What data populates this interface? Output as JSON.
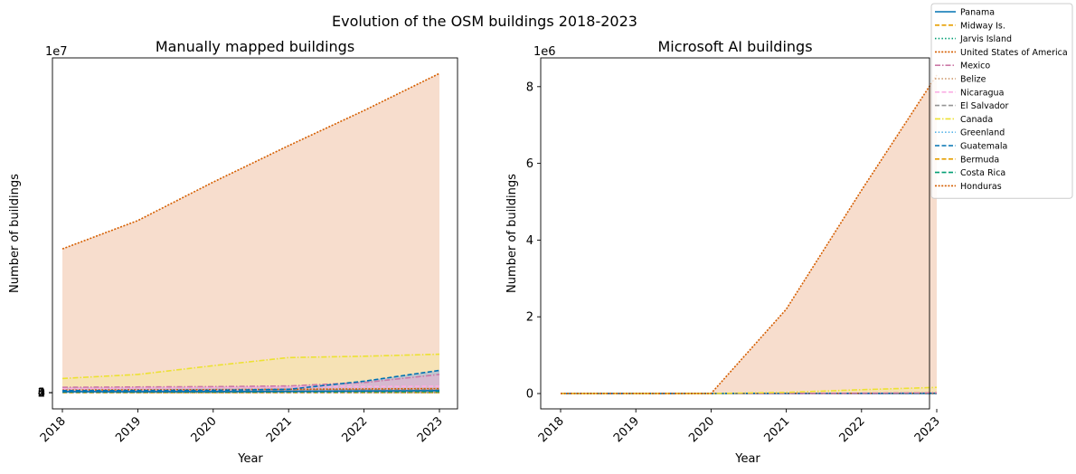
{
  "suptitle": "Evolution of the OSM buildings 2018-2023",
  "legend": {
    "placement": "top-right",
    "items": [
      {
        "label": "Panama",
        "color": "#0072b2",
        "dash": "solid"
      },
      {
        "label": "Midway Is.",
        "color": "#e69f00",
        "dash": "dashed"
      },
      {
        "label": "Jarvis Island",
        "color": "#009e73",
        "dash": "dotted"
      },
      {
        "label": "United States of America",
        "color": "#d55e00",
        "dash": "densedot"
      },
      {
        "label": "Mexico",
        "color": "#cc79a7",
        "dash": "dashdot"
      },
      {
        "label": "Belize",
        "color": "#ca9161",
        "dash": "dotted"
      },
      {
        "label": "Nicaragua",
        "color": "#fbafe4",
        "dash": "dashed"
      },
      {
        "label": "El Salvador",
        "color": "#949494",
        "dash": "dashed"
      },
      {
        "label": "Canada",
        "color": "#ece133",
        "dash": "dashdot"
      },
      {
        "label": "Greenland",
        "color": "#56b4e9",
        "dash": "dotted"
      },
      {
        "label": "Guatemala",
        "color": "#0072b2",
        "dash": "dashed"
      },
      {
        "label": "Bermuda",
        "color": "#e69f00",
        "dash": "dashed"
      },
      {
        "label": "Costa Rica",
        "color": "#009e73",
        "dash": "dashed"
      },
      {
        "label": "Honduras",
        "color": "#d55e00",
        "dash": "densedot"
      }
    ]
  },
  "chart_data": [
    {
      "type": "area",
      "title": "Manually mapped buildings",
      "xlabel": "Year",
      "ylabel": "Number of buildings",
      "exponent_label": "1e7",
      "x": [
        2018,
        2019,
        2020,
        2021,
        2022,
        2023
      ],
      "xticks": [
        "2018",
        "2019",
        "2020",
        "2021",
        "2022",
        "2023"
      ],
      "yticks": [
        0,
        1,
        2,
        3,
        4
      ],
      "ytick_labels": [
        "0",
        "1",
        "2",
        "3",
        "4"
      ],
      "ylim": [
        -2400000,
        49600000
      ],
      "grid": false,
      "fills": [
        {
          "series": "United States of America",
          "color": "#f6d9c8"
        },
        {
          "series": "Canada",
          "color": "#f5e2b3"
        },
        {
          "series": "Guatemala",
          "color": "#b8c2cf"
        },
        {
          "series": "Mexico",
          "color": "#d8b7cf"
        }
      ],
      "series": [
        {
          "name": "United States of America",
          "values": [
            21300000,
            25500000,
            31200000,
            36600000,
            41800000,
            47300000
          ]
        },
        {
          "name": "Canada",
          "values": [
            2100000,
            2700000,
            4000000,
            5200000,
            5400000,
            5700000
          ]
        },
        {
          "name": "Guatemala",
          "values": [
            300000,
            320000,
            350000,
            500000,
            1700000,
            3300000
          ]
        },
        {
          "name": "Mexico",
          "values": [
            800000,
            850000,
            900000,
            1000000,
            1500000,
            2700000
          ]
        },
        {
          "name": "Nicaragua",
          "values": [
            600000,
            700000,
            800000,
            850000,
            900000,
            950000
          ]
        },
        {
          "name": "Honduras",
          "values": [
            400000,
            420000,
            450000,
            500000,
            550000,
            600000
          ]
        },
        {
          "name": "El Salvador",
          "values": [
            300000,
            300000,
            350000,
            400000,
            450000,
            500000
          ]
        },
        {
          "name": "Panama",
          "values": [
            150000,
            160000,
            170000,
            200000,
            250000,
            300000
          ]
        },
        {
          "name": "Costa Rica",
          "values": [
            100000,
            110000,
            120000,
            130000,
            150000,
            170000
          ]
        },
        {
          "name": "Belize",
          "values": [
            30000,
            35000,
            40000,
            45000,
            50000,
            55000
          ]
        },
        {
          "name": "Greenland",
          "values": [
            5000,
            5000,
            6000,
            6000,
            7000,
            7000
          ]
        },
        {
          "name": "Bermuda",
          "values": [
            2000,
            2000,
            2000,
            2000,
            2000,
            2000
          ]
        },
        {
          "name": "Midway Is.",
          "values": [
            0,
            0,
            0,
            0,
            0,
            0
          ]
        },
        {
          "name": "Jarvis Island",
          "values": [
            0,
            0,
            0,
            0,
            0,
            0
          ]
        }
      ]
    },
    {
      "type": "area",
      "title": "Microsoft AI buildings",
      "xlabel": "Year",
      "ylabel": "Number of buildings",
      "exponent_label": "1e6",
      "x": [
        2018,
        2019,
        2020,
        2021,
        2022,
        2023
      ],
      "xticks": [
        "2018",
        "2019",
        "2020",
        "2021",
        "2022",
        "2023"
      ],
      "yticks": [
        0,
        2000000,
        4000000,
        6000000,
        8000000
      ],
      "ytick_labels": [
        "0",
        "2",
        "4",
        "6",
        "8"
      ],
      "ylim": [
        -400000,
        8750000
      ],
      "grid": false,
      "fills": [
        {
          "series": "United States of America",
          "color": "#f6d9c8"
        },
        {
          "series": "Canada",
          "color": "#f5e2b3"
        }
      ],
      "series": [
        {
          "name": "United States of America",
          "values": [
            0,
            0,
            0,
            2200000,
            5300000,
            8300000
          ]
        },
        {
          "name": "Canada",
          "values": [
            0,
            0,
            0,
            30000,
            100000,
            160000
          ]
        },
        {
          "name": "Mexico",
          "values": [
            0,
            0,
            0,
            5000,
            10000,
            20000
          ]
        },
        {
          "name": "Guatemala",
          "values": [
            0,
            0,
            0,
            3000,
            5000,
            10000
          ]
        },
        {
          "name": "Honduras",
          "values": [
            0,
            0,
            0,
            2000,
            4000,
            8000
          ]
        },
        {
          "name": "Nicaragua",
          "values": [
            0,
            0,
            0,
            1000,
            3000,
            6000
          ]
        },
        {
          "name": "El Salvador",
          "values": [
            0,
            0,
            0,
            1000,
            2000,
            4000
          ]
        },
        {
          "name": "Panama",
          "values": [
            0,
            0,
            0,
            1000,
            2000,
            3000
          ]
        },
        {
          "name": "Costa Rica",
          "values": [
            0,
            0,
            0,
            1000,
            2000,
            3000
          ]
        },
        {
          "name": "Belize",
          "values": [
            0,
            0,
            0,
            500,
            1000,
            1500
          ]
        },
        {
          "name": "Greenland",
          "values": [
            0,
            0,
            0,
            0,
            0,
            0
          ]
        },
        {
          "name": "Bermuda",
          "values": [
            0,
            0,
            0,
            0,
            0,
            0
          ]
        },
        {
          "name": "Midway Is.",
          "values": [
            0,
            0,
            0,
            0,
            0,
            0
          ]
        },
        {
          "name": "Jarvis Island",
          "values": [
            0,
            0,
            0,
            0,
            0,
            0
          ]
        }
      ]
    }
  ]
}
